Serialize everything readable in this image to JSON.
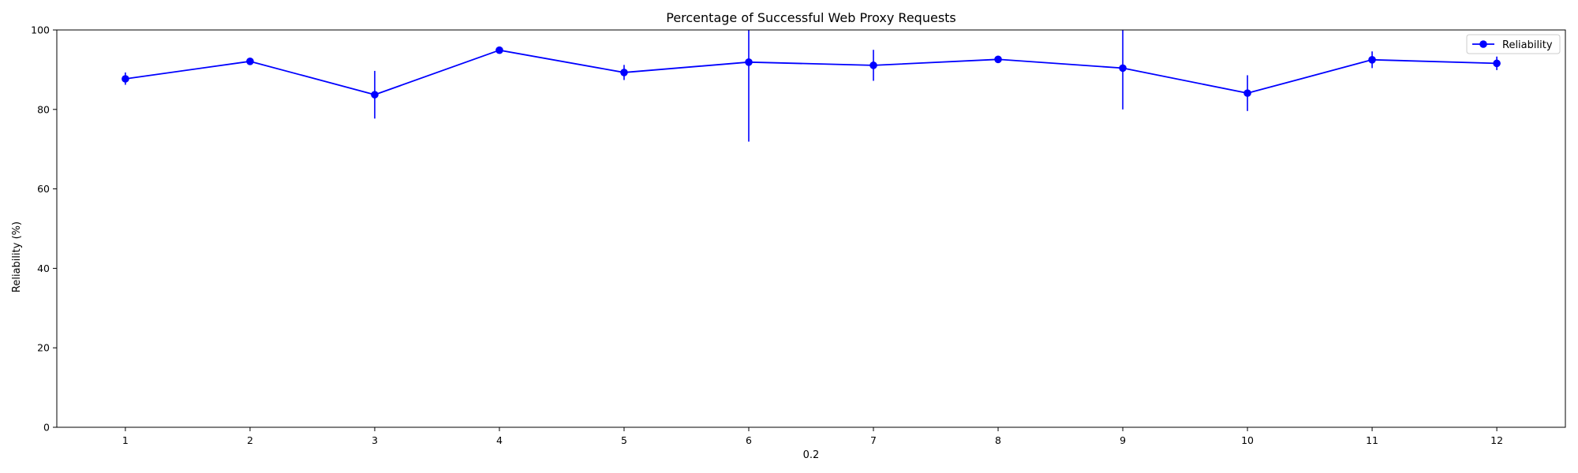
{
  "chart_data": {
    "type": "line",
    "title": "Percentage of Successful Web Proxy Requests",
    "xlabel": "0.2",
    "ylabel": "Reliability (%)",
    "x": [
      1,
      2,
      3,
      4,
      5,
      6,
      7,
      8,
      9,
      10,
      11,
      12
    ],
    "x_tick_labels": [
      "1",
      "2",
      "3",
      "4",
      "5",
      "6",
      "7",
      "8",
      "9",
      "10",
      "11",
      "12"
    ],
    "xlim": [
      0.45,
      12.55
    ],
    "ylim": [
      0,
      100
    ],
    "y_ticks": [
      0,
      20,
      40,
      60,
      80,
      100
    ],
    "y_tick_labels": [
      "0",
      "20",
      "40",
      "60",
      "80",
      "100"
    ],
    "grid": false,
    "legend": {
      "position": "top-right",
      "entries": [
        "Reliability"
      ]
    },
    "series": [
      {
        "name": "Reliability",
        "color": "#0000ff",
        "marker": "circle",
        "values": [
          87.7,
          92.1,
          83.7,
          94.9,
          89.3,
          91.9,
          91.1,
          92.6,
          90.4,
          84.1,
          92.5,
          91.6
        ],
        "error_low": [
          86.2,
          91.6,
          77.7,
          94.4,
          87.4,
          71.9,
          87.2,
          92.1,
          80.0,
          79.6,
          90.4,
          89.9
        ],
        "error_high": [
          89.3,
          92.6,
          89.7,
          95.4,
          91.2,
          100.0,
          95.0,
          93.1,
          100.0,
          88.6,
          94.6,
          93.3
        ]
      }
    ]
  }
}
